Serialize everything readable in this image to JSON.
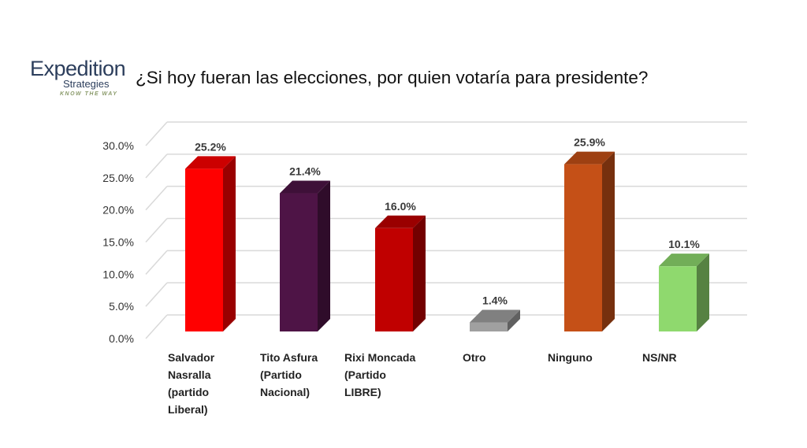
{
  "logo": {
    "name": "Expedition",
    "sub": "Strategies",
    "tagline": "KNOW THE WAY"
  },
  "chart_data": {
    "type": "bar",
    "title": "¿Si hoy fueran las elecciones, por quien votaría para presidente?",
    "categories": [
      [
        "Salvador",
        "Nasralla",
        "(partido",
        "Liberal)"
      ],
      [
        "Tito Asfura",
        "(Partido",
        "Nacional)"
      ],
      [
        "Rixi Moncada",
        "(Partido",
        "LIBRE)"
      ],
      [
        "Otro"
      ],
      [
        "Ninguno"
      ],
      [
        "NS/NR"
      ]
    ],
    "values": [
      25.2,
      21.4,
      16.0,
      1.4,
      25.9,
      10.1
    ],
    "data_labels": [
      "25.2%",
      "21.4%",
      "16.0%",
      "1.4%",
      "25.9%",
      "10.1%"
    ],
    "colors": [
      "#ff0000",
      "#4e1446",
      "#c00000",
      "#a0a0a0",
      "#c55017",
      "#8fd96e"
    ],
    "yticks": [
      "0.0%",
      "5.0%",
      "10.0%",
      "15.0%",
      "20.0%",
      "25.0%",
      "30.0%"
    ],
    "ylim": [
      0,
      30
    ],
    "grid": true,
    "style": "3d-column"
  }
}
